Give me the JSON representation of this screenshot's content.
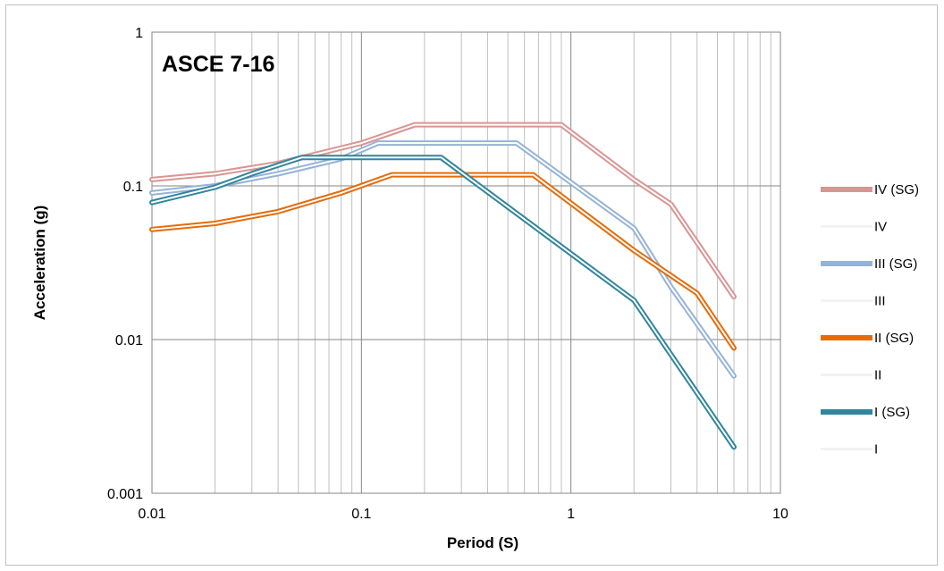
{
  "chart_data": {
    "type": "line",
    "title": "ASCE 7-16",
    "xlabel": "Period (S)",
    "ylabel": "Acceleration (g)",
    "x_scale": "log",
    "y_scale": "log",
    "xlim": [
      0.01,
      10
    ],
    "ylim": [
      0.001,
      1
    ],
    "x_ticks": [
      "0.01",
      "0.1",
      "1",
      "10"
    ],
    "y_ticks": [
      "1",
      "0.1",
      "0.01",
      "0.001"
    ],
    "grid": true,
    "legend_position": "right",
    "series": [
      {
        "name": "IV (SG)",
        "color": "#d99594",
        "style": "double",
        "points": [
          [
            0.01,
            0.11
          ],
          [
            0.02,
            0.12
          ],
          [
            0.04,
            0.14
          ],
          [
            0.1,
            0.19
          ],
          [
            0.18,
            0.25
          ],
          [
            0.9,
            0.25
          ],
          [
            2,
            0.11
          ],
          [
            3,
            0.076
          ],
          [
            6,
            0.019
          ]
        ]
      },
      {
        "name": "IV",
        "color": "#f2f2f2",
        "style": "single",
        "points": []
      },
      {
        "name": "III (SG)",
        "color": "#95b3d7",
        "style": "double",
        "points": [
          [
            0.01,
            0.09
          ],
          [
            0.02,
            0.1
          ],
          [
            0.04,
            0.12
          ],
          [
            0.08,
            0.15
          ],
          [
            0.12,
            0.19
          ],
          [
            0.55,
            0.19
          ],
          [
            2,
            0.053
          ],
          [
            3,
            0.022
          ],
          [
            6,
            0.0058
          ]
        ]
      },
      {
        "name": "III",
        "color": "#f2f2f2",
        "style": "single",
        "points": []
      },
      {
        "name": "II (SG)",
        "color": "#e46c0a",
        "style": "double",
        "points": [
          [
            0.01,
            0.052
          ],
          [
            0.02,
            0.057
          ],
          [
            0.04,
            0.068
          ],
          [
            0.08,
            0.09
          ],
          [
            0.14,
            0.118
          ],
          [
            0.66,
            0.118
          ],
          [
            2,
            0.038
          ],
          [
            4,
            0.02
          ],
          [
            6,
            0.0088
          ]
        ]
      },
      {
        "name": "II",
        "color": "#f2f2f2",
        "style": "single",
        "points": []
      },
      {
        "name": "I (SG)",
        "color": "#31859c",
        "style": "double",
        "points": [
          [
            0.01,
            0.078
          ],
          [
            0.02,
            0.098
          ],
          [
            0.03,
            0.12
          ],
          [
            0.052,
            0.153
          ],
          [
            0.24,
            0.153
          ],
          [
            2,
            0.018
          ],
          [
            6,
            0.002
          ]
        ]
      },
      {
        "name": "I",
        "color": "#f2f2f2",
        "style": "single",
        "points": []
      }
    ]
  }
}
